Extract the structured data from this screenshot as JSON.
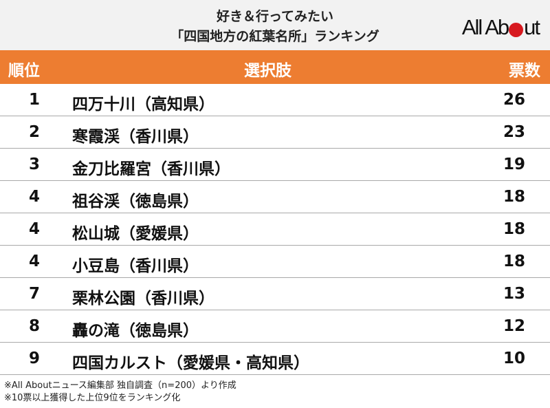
{
  "header": {
    "title_line1": "好き＆行ってみたい",
    "title_line2": "「四国地方の紅葉名所」ランキング",
    "logo": "All About",
    "logo_accent_color": "#d7191f"
  },
  "table": {
    "header_color": "#ed7d31",
    "columns": [
      "順位",
      "選択肢",
      "票数"
    ],
    "rows": [
      {
        "rank": "1",
        "name": "四万十川（高知県）",
        "votes": "26"
      },
      {
        "rank": "2",
        "name": "寒霞渓（香川県）",
        "votes": "23"
      },
      {
        "rank": "3",
        "name": "金刀比羅宮（香川県）",
        "votes": "19"
      },
      {
        "rank": "4",
        "name": "祖谷渓（徳島県）",
        "votes": "18"
      },
      {
        "rank": "4",
        "name": "松山城（愛媛県）",
        "votes": "18"
      },
      {
        "rank": "4",
        "name": "小豆島（香川県）",
        "votes": "18"
      },
      {
        "rank": "7",
        "name": "栗林公園（香川県）",
        "votes": "13"
      },
      {
        "rank": "8",
        "name": "轟の滝（徳島県）",
        "votes": "12"
      },
      {
        "rank": "9",
        "name": "四国カルスト（愛媛県・高知県）",
        "votes": "10"
      }
    ]
  },
  "footer": {
    "note1": "※All Aboutニュース編集部 独自調査（n=200）より作成",
    "note2": "※10票以上獲得した上位9位をランキング化"
  }
}
